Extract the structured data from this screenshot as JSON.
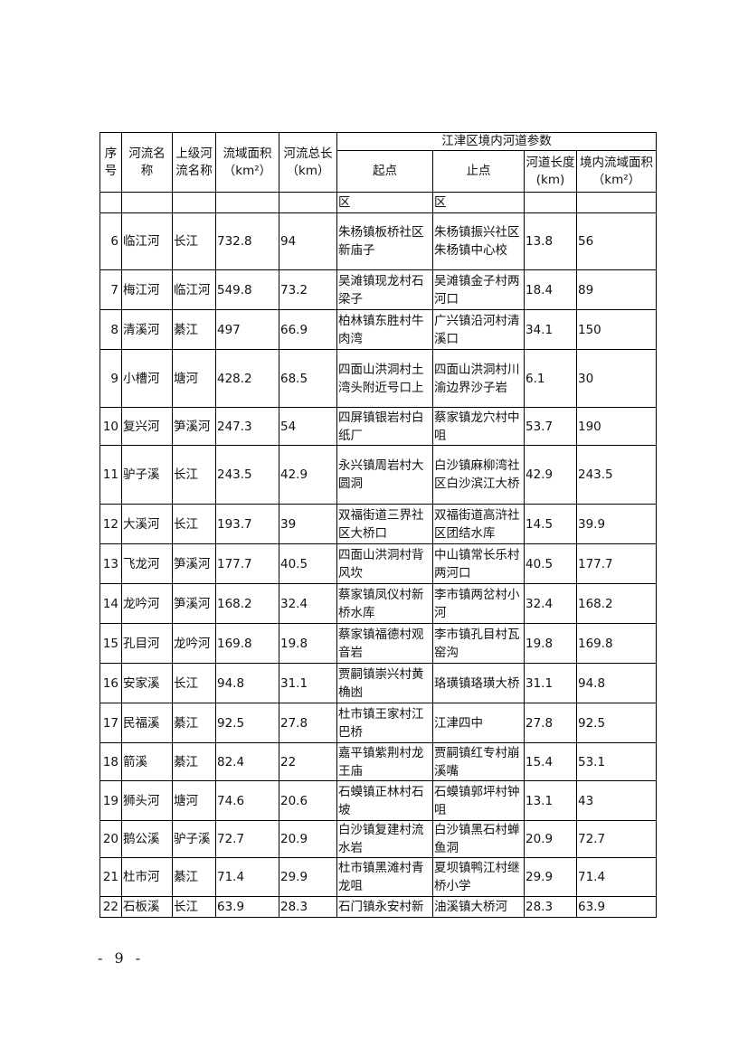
{
  "table": {
    "headers": {
      "no": "序号",
      "river": "河流名称",
      "parent": "上级河流名称",
      "area": "流域面积（km²）",
      "total_length": "河流总长（km）",
      "group": "江津区境内河道参数",
      "start": "起点",
      "end": "止点",
      "length": "河道长度(km)",
      "local_area": "境内流域面积（km²）"
    },
    "continuation_row": [
      "",
      "",
      "",
      "",
      "",
      "区",
      "区",
      "",
      ""
    ],
    "rows": [
      [
        "6",
        "临江河",
        "长江",
        "732.8",
        "94",
        "朱杨镇板桥社区新庙子",
        "朱杨镇振兴社区朱杨镇中心校",
        "13.8",
        "56"
      ],
      [
        "7",
        "梅江河",
        "临江河",
        "549.8",
        "73.2",
        "吴滩镇现龙村石梁子",
        "吴滩镇金子村两河口",
        "18.4",
        "89"
      ],
      [
        "8",
        "清溪河",
        "綦江",
        "497",
        "66.9",
        "柏林镇东胜村牛肉湾",
        "广兴镇沿河村清溪口",
        "34.1",
        "150"
      ],
      [
        "9",
        "小槽河",
        "塘河",
        "428.2",
        "68.5",
        "四面山洪洞村土湾头附近号口上",
        "四面山洪洞村川渝边界沙子岩",
        "6.1",
        "30"
      ],
      [
        "10",
        "复兴河",
        "笋溪河",
        "247.3",
        "54",
        "四屏镇银岩村白纸厂",
        "蔡家镇龙穴村中咀",
        "53.7",
        "190"
      ],
      [
        "11",
        "驴子溪",
        "长江",
        "243.5",
        "42.9",
        "永兴镇周岩村大圆洞",
        "白沙镇麻柳湾社区白沙滨江大桥",
        "42.9",
        "243.5"
      ],
      [
        "12",
        "大溪河",
        "长江",
        "193.7",
        "39",
        "双福街道三界社区大桥口",
        "双福街道高浒社区团结水库",
        "14.5",
        "39.9"
      ],
      [
        "13",
        "飞龙河",
        "笋溪河",
        "177.7",
        "40.5",
        "四面山洪洞村背风坎",
        "中山镇常长乐村两河口",
        "40.5",
        "177.7"
      ],
      [
        "14",
        "龙吟河",
        "笋溪河",
        "168.2",
        "32.4",
        "蔡家镇凤仪村新桥水库",
        "李市镇两岔村小河",
        "32.4",
        "168.2"
      ],
      [
        "15",
        "孔目河",
        "龙吟河",
        "169.8",
        "19.8",
        "蔡家镇福德村观音岩",
        "李市镇孔目村瓦窑沟",
        "19.8",
        "169.8"
      ],
      [
        "16",
        "安家溪",
        "长江",
        "94.8",
        "31.1",
        "贾嗣镇崇兴村黄桷凼",
        "珞璜镇珞璜大桥",
        "31.1",
        "94.8"
      ],
      [
        "17",
        "民福溪",
        "綦江",
        "92.5",
        "27.8",
        "杜市镇王家村江巴桥",
        "江津四中",
        "27.8",
        "92.5"
      ],
      [
        "18",
        "箭溪",
        "綦江",
        "82.4",
        "22",
        "嘉平镇紫荆村龙王庙",
        "贾嗣镇红专村崩溪嘴",
        "15.4",
        "53.1"
      ],
      [
        "19",
        "狮头河",
        "塘河",
        "74.6",
        "20.6",
        "石蟆镇正林村石坡",
        "石蟆镇郭坪村钟咀",
        "13.1",
        "43"
      ],
      [
        "20",
        "鹅公溪",
        "驴子溪",
        "72.7",
        "20.9",
        "白沙镇复建村流水岩",
        "白沙镇黑石村蝉鱼洞",
        "20.9",
        "72.7"
      ],
      [
        "21",
        "杜市河",
        "綦江",
        "71.4",
        "29.9",
        "杜市镇黑滩村青龙咀",
        "夏坝镇鸭江村继桥小学",
        "29.9",
        "71.4"
      ],
      [
        "22",
        "石板溪",
        "长江",
        "63.9",
        "28.3",
        "石门镇永安村新",
        "油溪镇大桥河",
        "28.3",
        "63.9"
      ]
    ]
  },
  "page_number": "- 9 -"
}
